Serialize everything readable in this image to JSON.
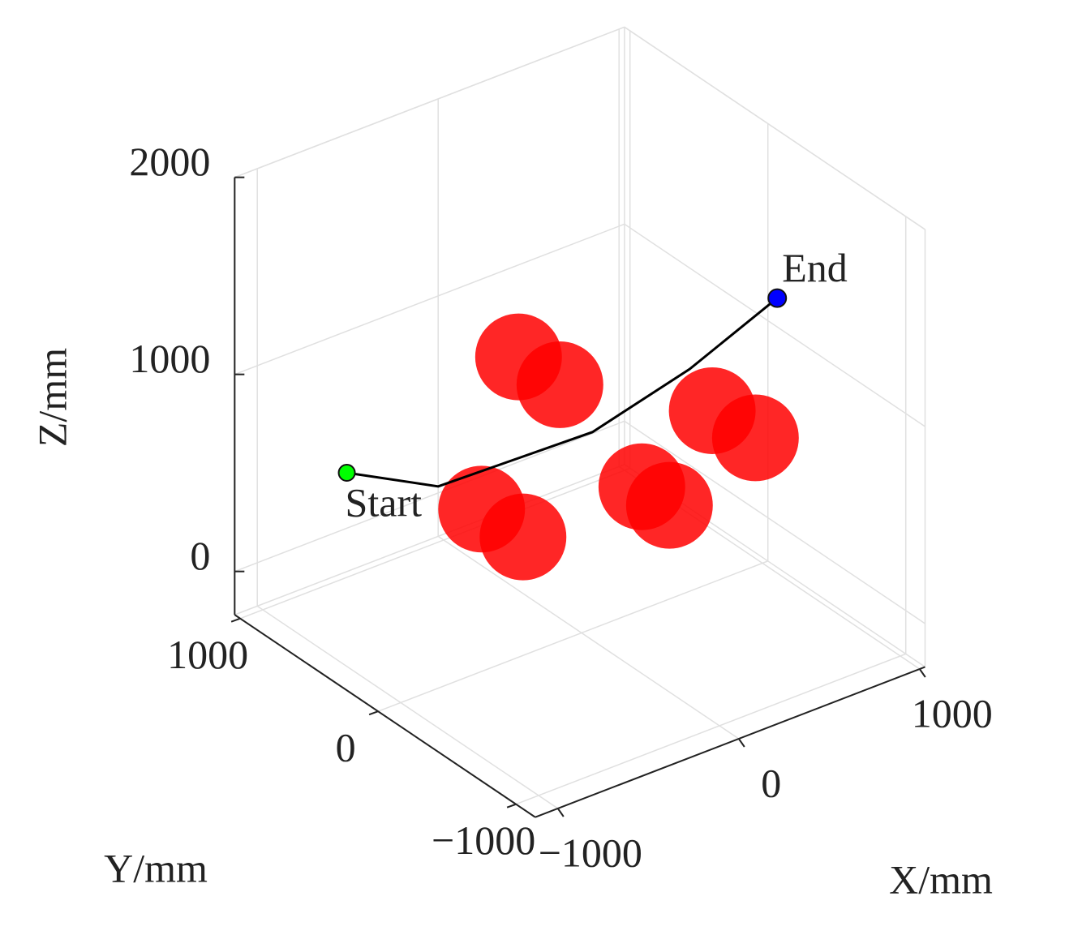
{
  "chart_data": {
    "type": "scatter3d",
    "xlabel": "X/mm",
    "ylabel": "Y/mm",
    "zlabel": "Z/mm",
    "xlim": [
      -1125,
      1030
    ],
    "ylim": [
      -1140,
      1040
    ],
    "zlim": [
      -220,
      2000
    ],
    "xticks": [
      {
        "value": -1000,
        "label": "−1000"
      },
      0,
      1000
    ],
    "yticks": [
      {
        "value": -1000,
        "label": "−1000"
      },
      0,
      1000
    ],
    "zticks": [
      0,
      1000,
      2000
    ],
    "grid": true,
    "obstacles": {
      "color": "#ff0000",
      "x": [
        170,
        170,
        -240,
        -240,
        440,
        440,
        570,
        580
      ],
      "y": [
        680,
        380,
        410,
        110,
        140,
        -60,
        -200,
        -500
      ],
      "z": [
        800,
        800,
        300,
        300,
        300,
        300,
        800,
        800
      ],
      "size": [
        220,
        220,
        220,
        220,
        220,
        220,
        220,
        220
      ]
    },
    "path": {
      "color": "#000000",
      "x": [
        -730,
        -480,
        140,
        605,
        975
      ],
      "y": [
        745,
        410,
        105,
        10,
        -140
      ],
      "z": [
        500,
        500,
        700,
        900,
        1200
      ]
    },
    "start": {
      "label": "Start",
      "color": "#00ff00"
    },
    "end": {
      "label": "End",
      "color": "#0000ff"
    }
  }
}
